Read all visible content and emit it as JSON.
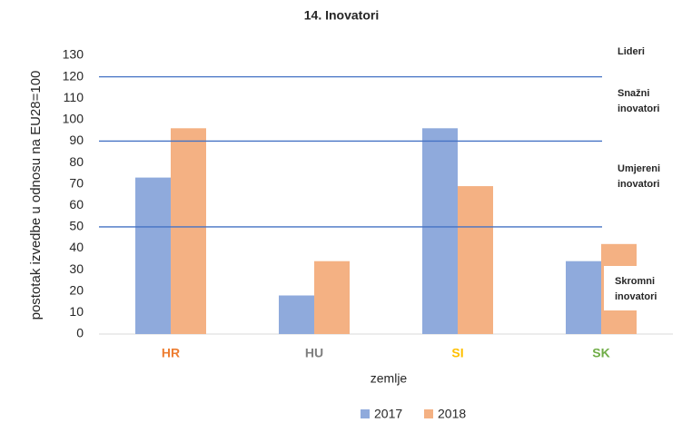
{
  "chart_data": {
    "type": "bar",
    "title": "14. Inovatori",
    "y_label": "postotak izvedbe u odnosu na EU28=100",
    "x_label": "zemlje",
    "categories": [
      "HR",
      "HU",
      "SI",
      "SK"
    ],
    "category_colors": [
      "#ed7d31",
      "#7f7f7f",
      "#ffc000",
      "#70ad47"
    ],
    "series": [
      {
        "name": "2017",
        "color": "#8faadc",
        "values": [
          73,
          18,
          96,
          34
        ]
      },
      {
        "name": "2018",
        "color": "#f4b183",
        "values": [
          96,
          34,
          69,
          42
        ]
      }
    ],
    "ylim": [
      0,
      130
    ],
    "yticks": [
      0,
      10,
      20,
      30,
      40,
      50,
      60,
      70,
      80,
      90,
      100,
      110,
      120,
      130
    ],
    "reference_lines": [
      50,
      90,
      120
    ],
    "reference_color": "#4472c4",
    "annotations": [
      [
        "Lideri"
      ],
      [
        "Snažni",
        "inovatori"
      ],
      [
        "Umjereni",
        "inovatori"
      ],
      [
        "Skromni",
        "inovatori"
      ]
    ],
    "legend": "bottom"
  }
}
